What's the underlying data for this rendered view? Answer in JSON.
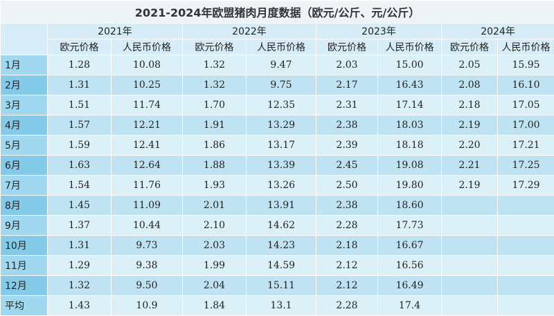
{
  "title": "2021-2024年欧盟猪肉月度数据（欧元/公斤、元/公斤）",
  "table": {
    "years": [
      "2021年",
      "2022年",
      "2023年",
      "2024年"
    ],
    "subheaders": [
      "欧元价格",
      "人民币价格",
      "欧元价格",
      "人民币价格",
      "欧元价格",
      "人民币价格",
      "欧元价格",
      "人民币价格"
    ],
    "rows": [
      [
        "1月",
        "1.28",
        "10.08",
        "1.32",
        "9.47",
        "2.03",
        "15.00",
        "2.05",
        "15.95"
      ],
      [
        "2月",
        "1.31",
        "10.25",
        "1.32",
        "9.75",
        "2.17",
        "16.43",
        "2.08",
        "16.10"
      ],
      [
        "3月",
        "1.51",
        "11.74",
        "1.70",
        "12.35",
        "2.31",
        "17.14",
        "2.18",
        "17.05"
      ],
      [
        "4月",
        "1.57",
        "12.21",
        "1.91",
        "13.29",
        "2.38",
        "18.03",
        "2.19",
        "17.00"
      ],
      [
        "5月",
        "1.59",
        "12.41",
        "1.86",
        "13.17",
        "2.39",
        "18.18",
        "2.20",
        "17.21"
      ],
      [
        "6月",
        "1.63",
        "12.64",
        "1.88",
        "13.39",
        "2.45",
        "19.08",
        "2.21",
        "17.25"
      ],
      [
        "7月",
        "1.54",
        "11.76",
        "1.93",
        "13.26",
        "2.50",
        "19.80",
        "2.19",
        "17.29"
      ],
      [
        "8月",
        "1.45",
        "11.09",
        "2.01",
        "13.91",
        "2.38",
        "18.60",
        null,
        null
      ],
      [
        "9月",
        "1.37",
        "10.44",
        "2.10",
        "14.62",
        "2.28",
        "17.73",
        null,
        null
      ],
      [
        "10月",
        "1.31",
        "9.73",
        "2.03",
        "14.23",
        "2.18",
        "16.67",
        null,
        null
      ],
      [
        "11月",
        "1.29",
        "9.38",
        "1.99",
        "14.59",
        "2.12",
        "16.56",
        null,
        null
      ],
      [
        "12月",
        "1.32",
        "9.50",
        "2.04",
        "15.11",
        "2.12",
        "16.49",
        null,
        null
      ],
      [
        "平均",
        "1.43",
        "10.9",
        "1.84",
        "13.1",
        "2.28",
        "17.4",
        null,
        null
      ]
    ]
  }
}
